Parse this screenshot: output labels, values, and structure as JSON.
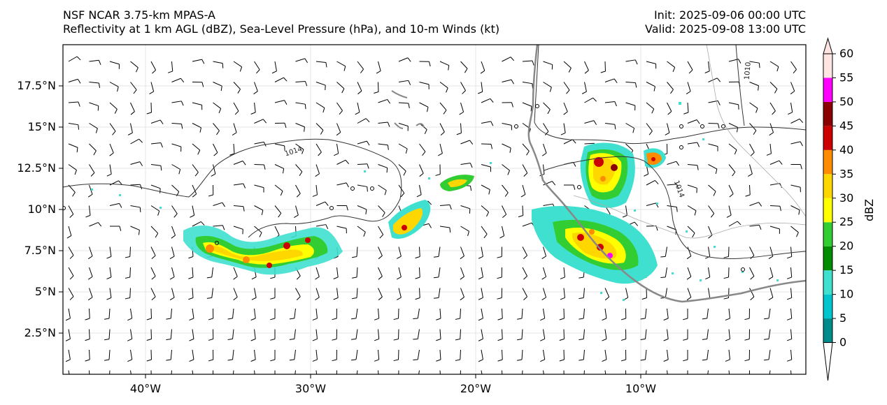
{
  "titles": {
    "left_line1": "NSF NCAR 3.75-km MPAS-A",
    "left_line2": "Reflectivity at 1 km AGL (dBZ), Sea-Level Pressure (hPa), and 10-m Winds (kt)",
    "right_line1": "Init: 2025-09-06 00:00 UTC",
    "right_line2": "Valid: 2025-09-08 13:00 UTC"
  },
  "map": {
    "lon_range": [
      -45,
      0
    ],
    "lat_range": [
      0,
      20
    ],
    "x_ticks": [
      {
        "lon": -40,
        "label": "40°W"
      },
      {
        "lon": -30,
        "label": "30°W"
      },
      {
        "lon": -20,
        "label": "20°W"
      },
      {
        "lon": -10,
        "label": "10°W"
      }
    ],
    "y_ticks": [
      {
        "lat": 2.5,
        "label": "2.5°N"
      },
      {
        "lat": 5,
        "label": "5°N"
      },
      {
        "lat": 7.5,
        "label": "7.5°N"
      },
      {
        "lat": 10,
        "label": "10°N"
      },
      {
        "lat": 12.5,
        "label": "12.5°N"
      },
      {
        "lat": 15,
        "label": "15°N"
      },
      {
        "lat": 17.5,
        "label": "17.5°N"
      }
    ],
    "pressure_contours": [
      {
        "label": "1014",
        "label_lon": -31,
        "label_lat": 13.4
      },
      {
        "label": "1014",
        "label_lon": -7.8,
        "label_lat": 11.2
      },
      {
        "label": "1010",
        "label_lon": -3.4,
        "label_lat": 18.4
      }
    ]
  },
  "colorbar": {
    "title": "dBZ",
    "levels": [
      0,
      5,
      10,
      15,
      20,
      25,
      30,
      35,
      40,
      45,
      50,
      55,
      60
    ],
    "labels": [
      "0",
      "5",
      "10",
      "15",
      "20",
      "25",
      "30",
      "35",
      "40",
      "45",
      "50",
      "55",
      "60"
    ],
    "colors": [
      "#008b8b",
      "#00c5cd",
      "#40e0d0",
      "#008b00",
      "#32cd32",
      "#ffff00",
      "#ffd700",
      "#ff8c00",
      "#cd0000",
      "#8b0000",
      "#ff00ff",
      "#ffe4e1"
    ]
  }
}
